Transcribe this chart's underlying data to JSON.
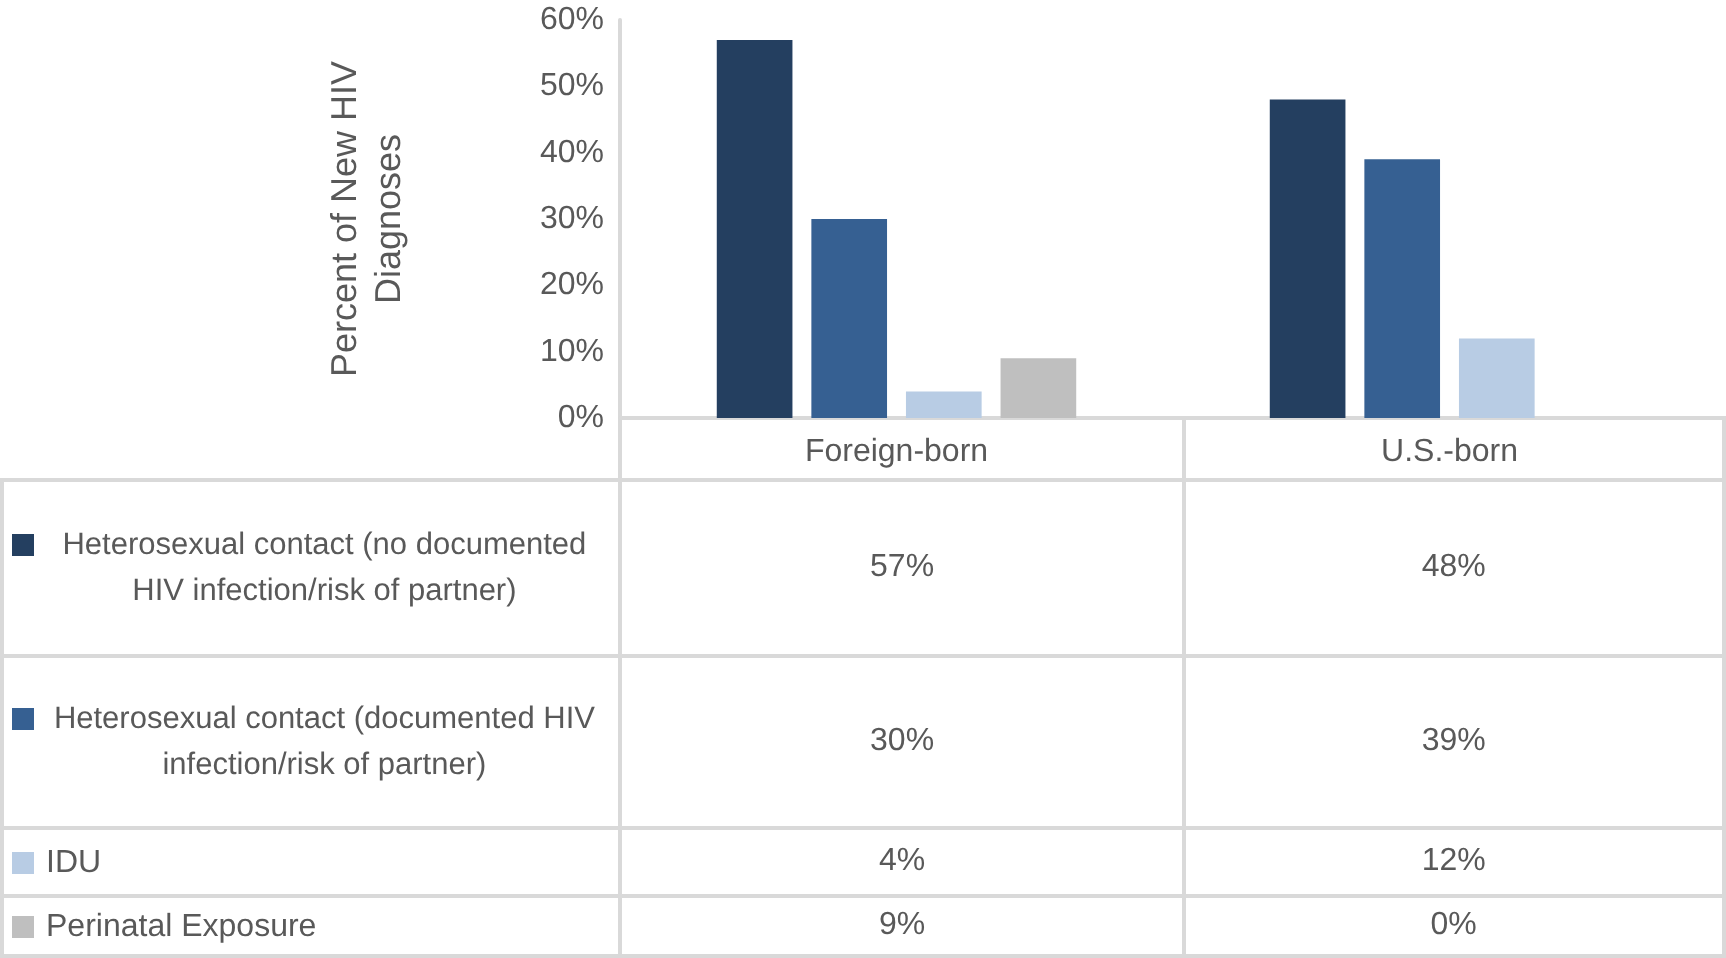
{
  "chart_data": {
    "type": "bar",
    "ylabel": "Percent of New HIV Diagnoses",
    "categories": [
      "Foreign-born",
      "U.S.-born"
    ],
    "series": [
      {
        "name": "Heterosexual contact (no documented HIV infection/risk of partner)",
        "color": "#243f60",
        "values": [
          57,
          48
        ],
        "value_labels": [
          "57%",
          "48%"
        ]
      },
      {
        "name": "Heterosexual contact (documented HIV infection/risk of partner)",
        "color": "#366092",
        "values": [
          30,
          39
        ],
        "value_labels": [
          "30%",
          "39%"
        ]
      },
      {
        "name": "IDU",
        "color": "#b8cce4",
        "values": [
          4,
          12
        ],
        "value_labels": [
          "4%",
          "12%"
        ]
      },
      {
        "name": "Perinatal Exposure",
        "color": "#bfbfbf",
        "values": [
          9,
          0
        ],
        "value_labels": [
          "9%",
          "0%"
        ]
      }
    ],
    "ylim": [
      0,
      60
    ],
    "yticks": [
      {
        "value": 0,
        "label": "0%"
      },
      {
        "value": 10,
        "label": "10%"
      },
      {
        "value": 20,
        "label": "20%"
      },
      {
        "value": 30,
        "label": "30%"
      },
      {
        "value": 40,
        "label": "40%"
      },
      {
        "value": 50,
        "label": "50%"
      },
      {
        "value": 60,
        "label": "60%"
      }
    ],
    "grid": false,
    "legend": "bottom"
  }
}
